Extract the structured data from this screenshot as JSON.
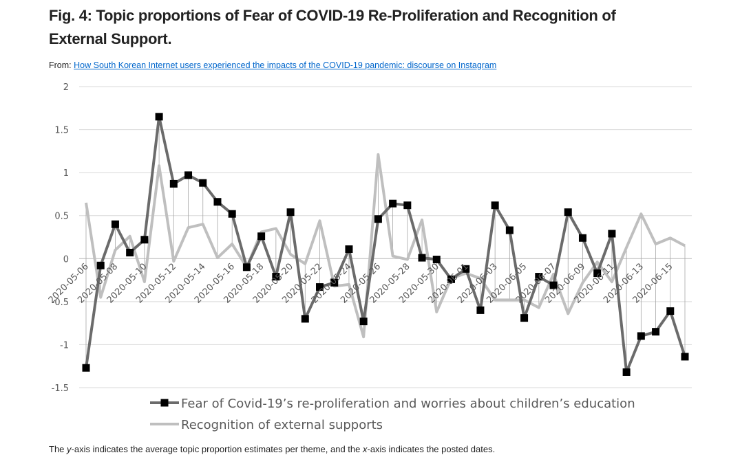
{
  "header": {
    "title": "Fig. 4: Topic proportions of Fear of COVID-19 Re-Proliferation and Recognition of External Support.",
    "from_label": "From:",
    "source": "How South Korean Internet users experienced the impacts of the COVID-19 pandemic: discourse on Instagram"
  },
  "caption": [
    "The ",
    "y",
    "-axis indicates the average topic proportion estimates per theme, and the ",
    "x",
    "-axis indicates the posted dates."
  ],
  "chart_data": {
    "type": "line",
    "categories": [
      "2020-05-06",
      null,
      "2020-05-08",
      null,
      "2020-05-10",
      null,
      "2020-05-12",
      null,
      "2020-05-14",
      null,
      "2020-05-16",
      null,
      "2020-05-18",
      null,
      "2020-05-20",
      null,
      "2020-05-22",
      null,
      "2020-05-24",
      null,
      "2020-05-26",
      null,
      "2020-05-28",
      null,
      "2020-05-30",
      null,
      "2020-06-01",
      null,
      "2020-06-03",
      null,
      "2020-06-05",
      null,
      "2020-06-07",
      null,
      "2020-06-09",
      null,
      "2020-06-11",
      null,
      "2020-06-13",
      null,
      "2020-06-15",
      null
    ],
    "series": [
      {
        "name": "Fear of Covid-19’s re-proliferation and worries about children’s education",
        "color": "#6b6b6b",
        "marker_color": "#000000",
        "values": [
          -1.27,
          -0.08,
          0.4,
          0.07,
          0.22,
          1.65,
          0.87,
          0.97,
          0.88,
          0.66,
          0.52,
          -0.1,
          0.26,
          -0.21,
          0.54,
          -0.7,
          -0.33,
          -0.28,
          0.11,
          -0.73,
          0.46,
          0.64,
          0.62,
          0.01,
          -0.01,
          -0.24,
          -0.12,
          -0.6,
          0.62,
          0.33,
          -0.69,
          -0.21,
          -0.31,
          0.54,
          0.24,
          -0.17,
          0.29,
          -1.32,
          -0.9,
          -0.85,
          -0.61,
          -1.14
        ]
      },
      {
        "name": "Recognition of external supports",
        "color": "#bfbfbf",
        "values": [
          0.65,
          -0.45,
          0.1,
          0.26,
          -0.27,
          1.08,
          -0.03,
          0.36,
          0.4,
          0.01,
          0.17,
          -0.1,
          0.31,
          0.35,
          0.05,
          -0.06,
          0.44,
          -0.32,
          -0.3,
          -0.91,
          1.21,
          0.03,
          -0.01,
          0.45,
          -0.62,
          -0.23,
          -0.17,
          -0.23,
          -0.48,
          -0.48,
          -0.48,
          -0.57,
          -0.18,
          -0.64,
          -0.28,
          -0.04,
          -0.27,
          0.13,
          0.52,
          0.17,
          0.24,
          0.15
        ]
      }
    ],
    "ylim": [
      -1.5,
      2
    ],
    "yticks": [
      -1.5,
      -1,
      -0.5,
      0,
      0.5,
      1,
      1.5,
      2
    ],
    "grid": true,
    "legend": "bottom"
  }
}
